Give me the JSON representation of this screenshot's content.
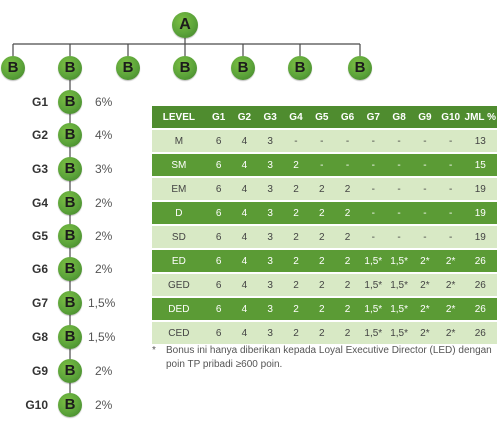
{
  "tree": {
    "root": "A",
    "top_level": [
      "B",
      "B",
      "B",
      "B",
      "B",
      "B",
      "B"
    ],
    "generations": [
      {
        "label": "G1",
        "node": "B",
        "pct": "6%"
      },
      {
        "label": "G2",
        "node": "B",
        "pct": "4%"
      },
      {
        "label": "G3",
        "node": "B",
        "pct": "3%"
      },
      {
        "label": "G4",
        "node": "B",
        "pct": "2%"
      },
      {
        "label": "G5",
        "node": "B",
        "pct": "2%"
      },
      {
        "label": "G6",
        "node": "B",
        "pct": "2%"
      },
      {
        "label": "G7",
        "node": "B",
        "pct": "1,5%"
      },
      {
        "label": "G8",
        "node": "B",
        "pct": "1,5%"
      },
      {
        "label": "G9",
        "node": "B",
        "pct": "2%"
      },
      {
        "label": "G10",
        "node": "B",
        "pct": "2%"
      }
    ]
  },
  "table": {
    "headers": [
      "LEVEL",
      "G1",
      "G2",
      "G3",
      "G4",
      "G5",
      "G6",
      "G7",
      "G8",
      "G9",
      "G10",
      "JML %"
    ],
    "rows": [
      [
        "M",
        "6",
        "4",
        "3",
        "-",
        "-",
        "-",
        "-",
        "-",
        "-",
        "-",
        "13"
      ],
      [
        "SM",
        "6",
        "4",
        "3",
        "2",
        "-",
        "-",
        "-",
        "-",
        "-",
        "-",
        "15"
      ],
      [
        "EM",
        "6",
        "4",
        "3",
        "2",
        "2",
        "2",
        "-",
        "-",
        "-",
        "-",
        "19"
      ],
      [
        "D",
        "6",
        "4",
        "3",
        "2",
        "2",
        "2",
        "-",
        "-",
        "-",
        "-",
        "19"
      ],
      [
        "SD",
        "6",
        "4",
        "3",
        "2",
        "2",
        "2",
        "-",
        "-",
        "-",
        "-",
        "19"
      ],
      [
        "ED",
        "6",
        "4",
        "3",
        "2",
        "2",
        "2",
        "1,5*",
        "1,5*",
        "2*",
        "2*",
        "26"
      ],
      [
        "GED",
        "6",
        "4",
        "3",
        "2",
        "2",
        "2",
        "1,5*",
        "1,5*",
        "2*",
        "2*",
        "26"
      ],
      [
        "DED",
        "6",
        "4",
        "3",
        "2",
        "2",
        "2",
        "1,5*",
        "1,5*",
        "2*",
        "2*",
        "26"
      ],
      [
        "CED",
        "6",
        "4",
        "3",
        "2",
        "2",
        "2",
        "1,5*",
        "1,5*",
        "2*",
        "2*",
        "26"
      ]
    ]
  },
  "note": {
    "marker": "*",
    "text": "Bonus ini hanya diberikan kepada Loyal Executive Director (LED) dengan poin TP pribadi ≥600 poin."
  },
  "colors": {
    "node_green": "#5ba33a",
    "header_green": "#4f8c2f",
    "row_dark": "#5b9b35",
    "row_light": "#d8e9c5",
    "line": "#4a4a4a"
  }
}
